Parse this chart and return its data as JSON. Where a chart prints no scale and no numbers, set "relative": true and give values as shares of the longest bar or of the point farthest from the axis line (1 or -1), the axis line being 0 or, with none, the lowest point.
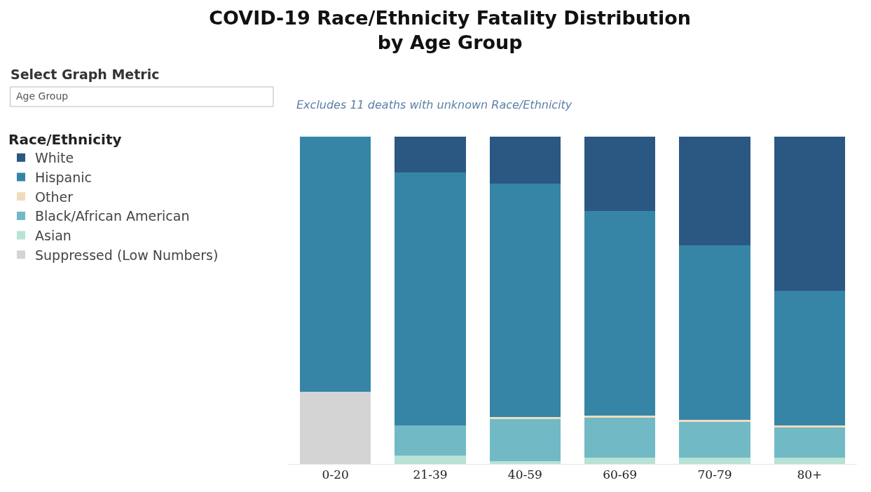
{
  "chart_data": {
    "type": "bar",
    "title": "COVID-19 Race/Ethnicity Fatality Distribution\nby Age Group",
    "subtitle": "Excludes 11 deaths with unknown Race/Ethnicity",
    "legend_title": "Race/Ethnicity",
    "annotations": [
      "Select Graph Metric",
      "Age Group"
    ],
    "categories": [
      "0-20",
      "21-39",
      "40-59",
      "60-69",
      "70-79",
      "80+"
    ],
    "stacked": true,
    "relative": true,
    "legend": "left",
    "series": [
      {
        "name": "Suppressed (Low Numbers)",
        "color": "#d4d4d4",
        "values": [
          0.22,
          null,
          null,
          null,
          null,
          null
        ]
      },
      {
        "name": "Asian",
        "color": "#b8e2d6",
        "values": [
          null,
          0.025,
          0.008,
          0.019,
          0.019,
          0.019
        ]
      },
      {
        "name": "Black/African American",
        "color": "#72b9c6",
        "values": [
          null,
          0.093,
          0.13,
          0.123,
          0.11,
          0.093
        ]
      },
      {
        "name": "Other",
        "color": "#f0dcbb",
        "values": [
          null,
          null,
          0.006,
          0.006,
          0.006,
          0.006
        ]
      },
      {
        "name": "Hispanic",
        "color": "#3685a7",
        "values": [
          0.78,
          0.772,
          0.712,
          0.625,
          0.534,
          0.41
        ]
      },
      {
        "name": "White",
        "color": "#2b5783",
        "values": [
          null,
          0.11,
          0.144,
          0.227,
          0.331,
          0.472
        ]
      }
    ]
  }
}
